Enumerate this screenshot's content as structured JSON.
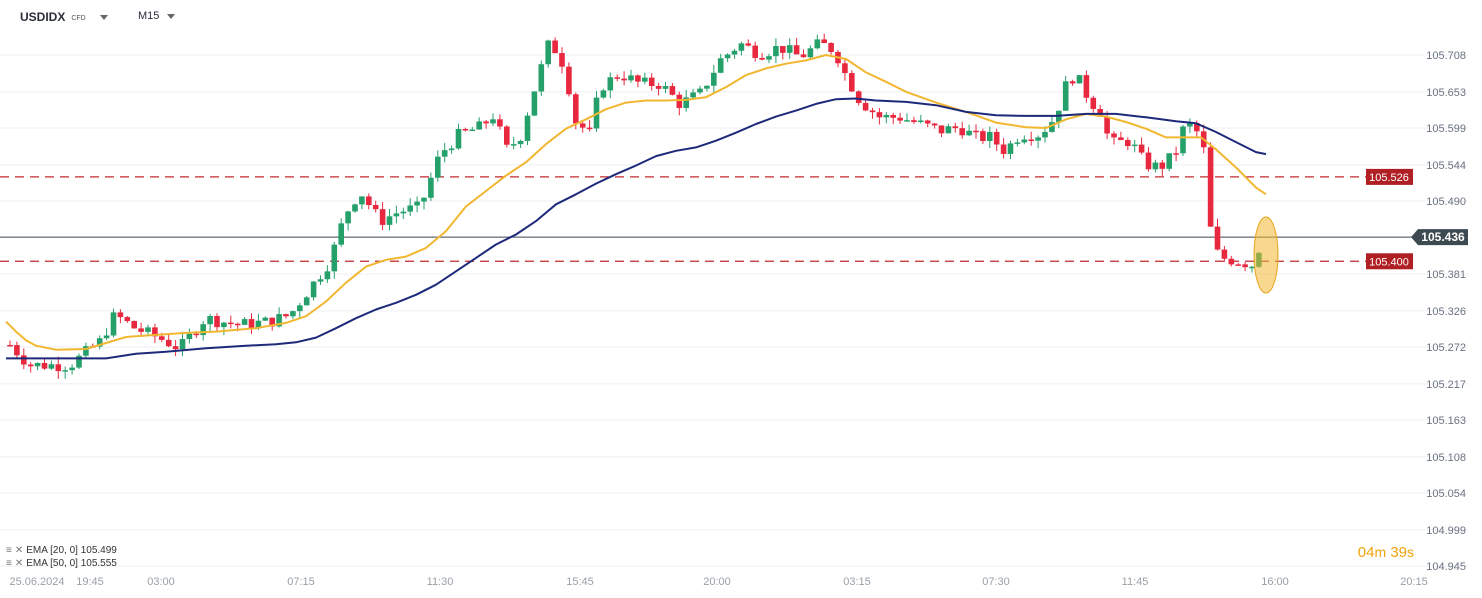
{
  "header": {
    "symbol": "USDIDX",
    "instrument_type": "CFD",
    "timeframe": "M15"
  },
  "indicators": [
    {
      "label": "EMA [20, 0] 105.499",
      "color": "#f2b731"
    },
    {
      "label": "EMA [50, 0] 105.555",
      "color": "#1d2a7a"
    }
  ],
  "countdown": {
    "minutes": "04",
    "m": "m",
    "seconds": "39",
    "s": "s"
  },
  "colors": {
    "up": "#26a06b",
    "down": "#e8283e",
    "ema20": "#f2b731",
    "ema50": "#1d2a7a",
    "level_line": "#c0282e",
    "price_line": "#3d4a52",
    "grid": "#eceff2",
    "highlight": "#f2b731"
  },
  "chart_data": {
    "type": "candlestick",
    "y_axis": {
      "ticks": [
        "105.708",
        "105.653",
        "105.599",
        "105.544",
        "105.490",
        "105.436",
        "105.381",
        "105.326",
        "105.272",
        "105.217",
        "105.163",
        "105.108",
        "105.054",
        "104.999",
        "104.945"
      ],
      "range": [
        104.945,
        105.78
      ]
    },
    "x_axis": {
      "ticks": [
        "25.06.2024",
        "19:45",
        "03:00",
        "07:15",
        "11:30",
        "15:45",
        "20:00",
        "03:15",
        "07:30",
        "11:45",
        "16:00",
        "20:15"
      ]
    },
    "current_price": "105.436",
    "levels": [
      {
        "label": "105.526",
        "value": 105.526
      },
      {
        "label": "105.400",
        "value": 105.4
      }
    ],
    "ema20": [
      [
        0,
        105.31
      ],
      [
        10,
        105.295
      ],
      [
        20,
        105.282
      ],
      [
        30,
        105.274
      ],
      [
        50,
        105.268
      ],
      [
        80,
        105.269
      ],
      [
        100,
        105.278
      ],
      [
        120,
        105.287
      ],
      [
        150,
        105.29
      ],
      [
        180,
        105.293
      ],
      [
        210,
        105.295
      ],
      [
        250,
        105.3
      ],
      [
        280,
        105.308
      ],
      [
        300,
        105.318
      ],
      [
        320,
        105.34
      ],
      [
        340,
        105.368
      ],
      [
        360,
        105.392
      ],
      [
        380,
        105.402
      ],
      [
        400,
        105.407
      ],
      [
        420,
        105.42
      ],
      [
        440,
        105.445
      ],
      [
        460,
        105.482
      ],
      [
        480,
        105.505
      ],
      [
        500,
        105.528
      ],
      [
        520,
        105.548
      ],
      [
        540,
        105.575
      ],
      [
        560,
        105.598
      ],
      [
        580,
        105.612
      ],
      [
        600,
        105.627
      ],
      [
        620,
        105.637
      ],
      [
        640,
        105.64
      ],
      [
        660,
        105.64
      ],
      [
        680,
        105.641
      ],
      [
        700,
        105.645
      ],
      [
        720,
        105.66
      ],
      [
        740,
        105.678
      ],
      [
        760,
        105.688
      ],
      [
        780,
        105.695
      ],
      [
        800,
        105.7
      ],
      [
        820,
        105.708
      ],
      [
        840,
        105.702
      ],
      [
        860,
        105.682
      ],
      [
        880,
        105.668
      ],
      [
        900,
        105.653
      ],
      [
        930,
        105.637
      ],
      [
        960,
        105.623
      ],
      [
        990,
        105.607
      ],
      [
        1020,
        105.6
      ],
      [
        1040,
        105.599
      ],
      [
        1060,
        105.612
      ],
      [
        1080,
        105.62
      ],
      [
        1100,
        105.616
      ],
      [
        1120,
        105.608
      ],
      [
        1140,
        105.598
      ],
      [
        1160,
        105.585
      ],
      [
        1180,
        105.585
      ],
      [
        1195,
        105.585
      ],
      [
        1210,
        105.567
      ],
      [
        1230,
        105.54
      ],
      [
        1250,
        105.51
      ],
      [
        1260,
        105.5
      ]
    ],
    "ema50": [
      [
        0,
        105.255
      ],
      [
        20,
        105.255
      ],
      [
        60,
        105.255
      ],
      [
        100,
        105.255
      ],
      [
        130,
        105.262
      ],
      [
        160,
        105.265
      ],
      [
        200,
        105.27
      ],
      [
        240,
        105.274
      ],
      [
        270,
        105.276
      ],
      [
        290,
        105.279
      ],
      [
        310,
        105.286
      ],
      [
        330,
        105.3
      ],
      [
        350,
        105.315
      ],
      [
        370,
        105.328
      ],
      [
        390,
        105.338
      ],
      [
        410,
        105.35
      ],
      [
        430,
        105.365
      ],
      [
        450,
        105.385
      ],
      [
        470,
        105.405
      ],
      [
        490,
        105.425
      ],
      [
        510,
        105.44
      ],
      [
        530,
        105.46
      ],
      [
        550,
        105.485
      ],
      [
        570,
        105.5
      ],
      [
        590,
        105.516
      ],
      [
        610,
        105.53
      ],
      [
        630,
        105.543
      ],
      [
        650,
        105.557
      ],
      [
        670,
        105.565
      ],
      [
        690,
        105.57
      ],
      [
        710,
        105.58
      ],
      [
        730,
        105.592
      ],
      [
        750,
        105.605
      ],
      [
        770,
        105.616
      ],
      [
        790,
        105.625
      ],
      [
        810,
        105.635
      ],
      [
        830,
        105.642
      ],
      [
        850,
        105.643
      ],
      [
        870,
        105.64
      ],
      [
        900,
        105.638
      ],
      [
        930,
        105.633
      ],
      [
        960,
        105.623
      ],
      [
        990,
        105.618
      ],
      [
        1020,
        105.617
      ],
      [
        1050,
        105.617
      ],
      [
        1080,
        105.62
      ],
      [
        1110,
        105.62
      ],
      [
        1140,
        105.615
      ],
      [
        1170,
        105.609
      ],
      [
        1190,
        105.606
      ],
      [
        1210,
        105.593
      ],
      [
        1230,
        105.578
      ],
      [
        1250,
        105.563
      ],
      [
        1260,
        105.56
      ]
    ]
  }
}
